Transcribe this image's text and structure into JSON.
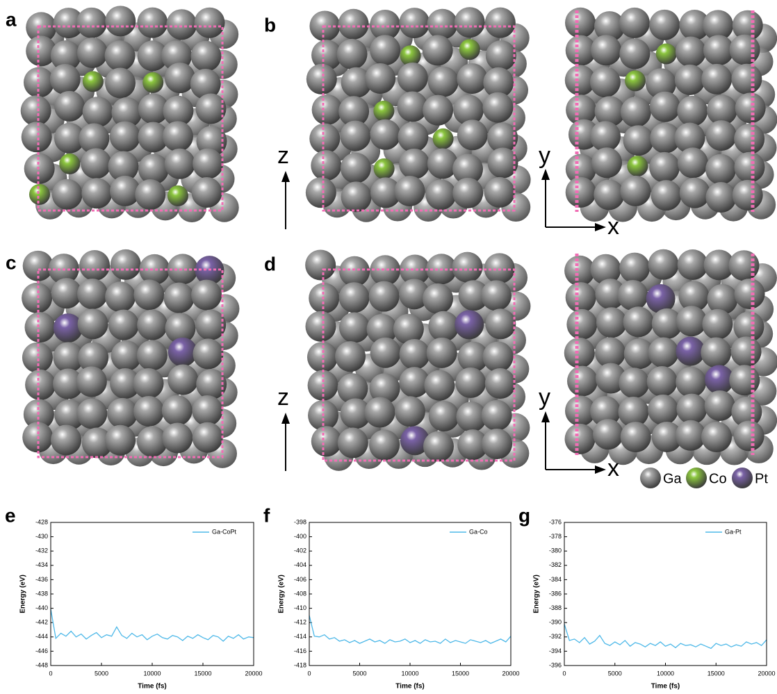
{
  "panel_labels": [
    "a",
    "b",
    "c",
    "d"
  ],
  "axis_labels": {
    "z": "z",
    "y": "y",
    "x": "x"
  },
  "legend": [
    {
      "name": "Ga",
      "color": "#a8a8a8"
    },
    {
      "name": "Co",
      "color": "#8cc63f"
    },
    {
      "name": "Pt",
      "color": "#7a62a6"
    }
  ],
  "chart_data": [
    {
      "type": "line",
      "panel_label": "e",
      "xlabel": "Time (fs)",
      "ylabel": "Energy (eV)",
      "legend": "top-right",
      "x": [
        0,
        500,
        1000,
        1500,
        2000,
        2500,
        3000,
        3500,
        4000,
        4500,
        5000,
        5500,
        6000,
        6500,
        7000,
        7500,
        8000,
        8500,
        9000,
        9500,
        10000,
        10500,
        11000,
        11500,
        12000,
        12500,
        13000,
        13500,
        14000,
        14500,
        15000,
        15500,
        16000,
        16500,
        17000,
        17500,
        18000,
        18500,
        19000,
        19500,
        20000
      ],
      "series": [
        {
          "name": "Ga-CoPt",
          "color": "#4db8e8",
          "values": [
            -440.1,
            -444.2,
            -443.5,
            -443.9,
            -443.2,
            -444.0,
            -443.6,
            -444.3,
            -443.8,
            -443.4,
            -444.1,
            -443.7,
            -443.9,
            -442.6,
            -443.8,
            -444.2,
            -443.5,
            -444.0,
            -443.7,
            -444.4,
            -443.9,
            -443.6,
            -444.1,
            -444.3,
            -443.8,
            -444.0,
            -444.5,
            -443.9,
            -444.2,
            -443.7,
            -444.1,
            -444.4,
            -443.8,
            -444.0,
            -444.6,
            -443.9,
            -444.2,
            -443.7,
            -444.3,
            -444.0,
            -444.1
          ]
        }
      ],
      "xlim": [
        0,
        20000
      ],
      "xticks": [
        0,
        5000,
        10000,
        15000,
        20000
      ],
      "ylim": [
        -448,
        -428
      ],
      "yticks": [
        -448,
        -446,
        -444,
        -442,
        -440,
        -438,
        -436,
        -434,
        -432,
        -430,
        -428
      ]
    },
    {
      "type": "line",
      "panel_label": "f",
      "xlabel": "Time (fs)",
      "ylabel": "Energy (eV)",
      "legend": "top-right",
      "x": [
        0,
        500,
        1000,
        1500,
        2000,
        2500,
        3000,
        3500,
        4000,
        4500,
        5000,
        5500,
        6000,
        6500,
        7000,
        7500,
        8000,
        8500,
        9000,
        9500,
        10000,
        10500,
        11000,
        11500,
        12000,
        12500,
        13000,
        13500,
        14000,
        14500,
        15000,
        15500,
        16000,
        16500,
        17000,
        17500,
        18000,
        18500,
        19000,
        19500,
        20000
      ],
      "series": [
        {
          "name": "Ga-Co",
          "color": "#4db8e8",
          "values": [
            -411.0,
            -413.9,
            -414.0,
            -413.7,
            -414.3,
            -414.1,
            -414.6,
            -414.4,
            -414.8,
            -414.5,
            -414.9,
            -414.6,
            -414.3,
            -414.7,
            -414.5,
            -414.9,
            -414.4,
            -414.7,
            -414.6,
            -414.3,
            -414.8,
            -414.5,
            -414.9,
            -414.4,
            -414.7,
            -414.6,
            -414.9,
            -414.3,
            -414.8,
            -414.5,
            -414.7,
            -414.9,
            -414.4,
            -414.6,
            -414.8,
            -414.5,
            -414.9,
            -414.6,
            -414.3,
            -414.7,
            -413.9
          ]
        }
      ],
      "xlim": [
        0,
        20000
      ],
      "xticks": [
        0,
        5000,
        10000,
        15000,
        20000
      ],
      "ylim": [
        -418,
        -398
      ],
      "yticks": [
        -418,
        -416,
        -414,
        -412,
        -410,
        -408,
        -406,
        -404,
        -402,
        -400,
        -398
      ]
    },
    {
      "type": "line",
      "panel_label": "g",
      "xlabel": "Time (fs)",
      "ylabel": "Energy (eV)",
      "legend": "top-right",
      "x": [
        0,
        500,
        1000,
        1500,
        2000,
        2500,
        3000,
        3500,
        4000,
        4500,
        5000,
        5500,
        6000,
        6500,
        7000,
        7500,
        8000,
        8500,
        9000,
        9500,
        10000,
        10500,
        11000,
        11500,
        12000,
        12500,
        13000,
        13500,
        14000,
        14500,
        15000,
        15500,
        16000,
        16500,
        17000,
        17500,
        18000,
        18500,
        19000,
        19500,
        20000
      ],
      "series": [
        {
          "name": "Ga-Pt",
          "color": "#4db8e8",
          "values": [
            -390.2,
            -392.5,
            -392.3,
            -392.8,
            -392.1,
            -393.0,
            -392.6,
            -391.8,
            -392.9,
            -393.2,
            -392.7,
            -393.1,
            -392.5,
            -393.3,
            -392.8,
            -393.0,
            -393.4,
            -392.9,
            -393.2,
            -392.7,
            -393.3,
            -393.0,
            -393.5,
            -392.9,
            -393.2,
            -393.1,
            -393.4,
            -393.0,
            -393.3,
            -393.6,
            -392.9,
            -393.2,
            -393.0,
            -393.4,
            -393.1,
            -393.3,
            -392.7,
            -393.0,
            -392.8,
            -393.2,
            -392.4
          ]
        }
      ],
      "xlim": [
        0,
        20000
      ],
      "xticks": [
        0,
        5000,
        10000,
        15000,
        20000
      ],
      "ylim": [
        -396,
        -376
      ],
      "yticks": [
        -396,
        -394,
        -392,
        -390,
        -388,
        -386,
        -384,
        -382,
        -380,
        -378,
        -376
      ]
    }
  ]
}
